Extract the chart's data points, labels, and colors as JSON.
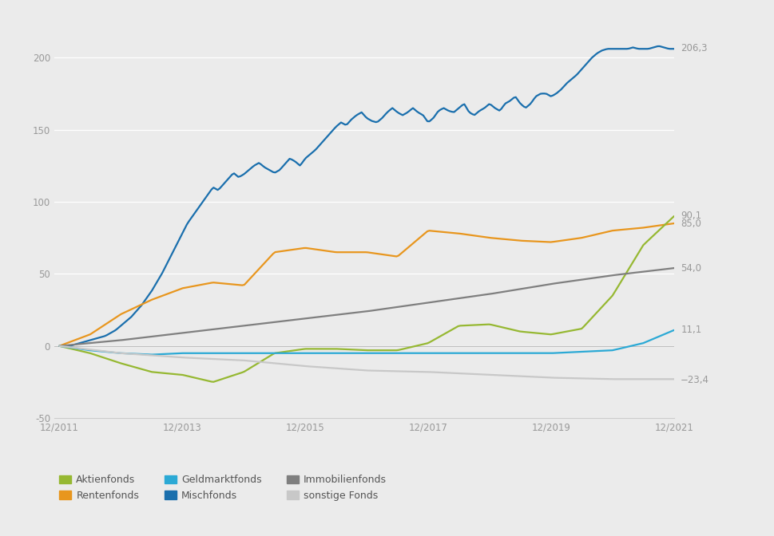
{
  "background_color": "#ebebeb",
  "x_labels": [
    "12/2011",
    "12/2013",
    "12/2015",
    "12/2017",
    "12/2019",
    "12/2021"
  ],
  "x_ticks_pos": [
    0,
    24,
    48,
    72,
    96,
    120
  ],
  "ylim": [
    -50,
    225
  ],
  "yticks": [
    -50,
    0,
    50,
    100,
    150,
    200
  ],
  "end_labels": {
    "Mischfonds": [
      206.3,
      "206,3"
    ],
    "Aktienfonds": [
      90.1,
      "90,1"
    ],
    "Rentenfonds": [
      85.0,
      "85,0"
    ],
    "Immobilienfonds": [
      54.0,
      "54,0"
    ],
    "Geldmarktfonds": [
      11.1,
      "11,1"
    ],
    "sonstige Fonds": [
      -23.4,
      "−23,4"
    ]
  },
  "series": {
    "Mischfonds": {
      "color": "#1a6fad",
      "linewidth": 1.6,
      "x": [
        0,
        1,
        2,
        3,
        4,
        5,
        6,
        7,
        8,
        9,
        10,
        11,
        12,
        13,
        14,
        15,
        16,
        17,
        18,
        19,
        20,
        21,
        22,
        23,
        24,
        25,
        26,
        27,
        28,
        29,
        30,
        31,
        32,
        33,
        34,
        35,
        36,
        37,
        38,
        39,
        40,
        41,
        42,
        43,
        44,
        45,
        46,
        47,
        48,
        49,
        50,
        51,
        52,
        53,
        54,
        55,
        56,
        57,
        58,
        59,
        60,
        61,
        62,
        63,
        64,
        65,
        66,
        67,
        68,
        69,
        70,
        71,
        72,
        73,
        74,
        75,
        76,
        77,
        78,
        79,
        80,
        81,
        82,
        83,
        84,
        85,
        86,
        87,
        88,
        89,
        90,
        91,
        92,
        93,
        94,
        95,
        96,
        97,
        98,
        99,
        100,
        101,
        102,
        103,
        104,
        105,
        106,
        107,
        108,
        109,
        110,
        111,
        112,
        113,
        114,
        115,
        116,
        117,
        118,
        119,
        120
      ],
      "y": [
        0,
        0,
        0,
        1,
        2,
        3,
        4,
        5,
        6,
        7,
        9,
        11,
        14,
        17,
        20,
        24,
        28,
        33,
        38,
        44,
        50,
        57,
        64,
        71,
        78,
        85,
        90,
        95,
        100,
        105,
        110,
        108,
        112,
        116,
        120,
        117,
        119,
        122,
        125,
        127,
        124,
        122,
        120,
        122,
        126,
        130,
        128,
        125,
        130,
        133,
        136,
        140,
        144,
        148,
        152,
        155,
        153,
        157,
        160,
        162,
        158,
        156,
        155,
        158,
        162,
        165,
        162,
        160,
        162,
        165,
        162,
        160,
        155,
        158,
        163,
        165,
        163,
        162,
        165,
        168,
        162,
        160,
        163,
        165,
        168,
        165,
        163,
        168,
        170,
        173,
        168,
        165,
        168,
        173,
        175,
        175,
        173,
        175,
        178,
        182,
        185,
        188,
        192,
        196,
        200,
        203,
        205,
        206,
        206,
        206,
        206,
        206,
        207,
        206,
        206,
        206,
        207,
        208,
        207,
        206,
        206
      ]
    },
    "Rentenfonds": {
      "color": "#e8961e",
      "linewidth": 1.6,
      "x": [
        0,
        6,
        12,
        18,
        24,
        30,
        36,
        42,
        48,
        54,
        60,
        66,
        72,
        78,
        84,
        90,
        96,
        102,
        108,
        114,
        120
      ],
      "y": [
        0,
        8,
        22,
        32,
        40,
        44,
        42,
        65,
        68,
        65,
        65,
        62,
        80,
        78,
        75,
        73,
        72,
        75,
        80,
        82,
        85
      ]
    },
    "Aktienfonds": {
      "color": "#96b832",
      "linewidth": 1.6,
      "x": [
        0,
        6,
        12,
        18,
        24,
        30,
        36,
        42,
        48,
        54,
        60,
        66,
        72,
        78,
        84,
        90,
        96,
        102,
        108,
        114,
        120
      ],
      "y": [
        0,
        -5,
        -12,
        -18,
        -20,
        -25,
        -18,
        -5,
        -2,
        -2,
        -3,
        -3,
        2,
        14,
        15,
        10,
        8,
        12,
        35,
        70,
        90
      ]
    },
    "Immobilienfonds": {
      "color": "#7f7f7f",
      "linewidth": 1.6,
      "x": [
        0,
        12,
        24,
        36,
        48,
        60,
        72,
        84,
        96,
        108,
        120
      ],
      "y": [
        0,
        4,
        9,
        14,
        19,
        24,
        30,
        36,
        43,
        49,
        54
      ]
    },
    "Geldmarktfonds": {
      "color": "#2ba9d5",
      "linewidth": 1.6,
      "x": [
        0,
        6,
        12,
        18,
        24,
        30,
        36,
        42,
        48,
        54,
        60,
        66,
        72,
        78,
        84,
        90,
        96,
        102,
        108,
        114,
        120
      ],
      "y": [
        0,
        -3,
        -5,
        -6,
        -5,
        -5,
        -5,
        -5,
        -5,
        -5,
        -5,
        -5,
        -5,
        -5,
        -5,
        -5,
        -5,
        -4,
        -3,
        2,
        11
      ]
    },
    "sonstige Fonds": {
      "color": "#c8c8c8",
      "linewidth": 1.6,
      "x": [
        0,
        12,
        24,
        36,
        48,
        60,
        72,
        84,
        96,
        108,
        120
      ],
      "y": [
        0,
        -5,
        -8,
        -10,
        -14,
        -17,
        -18,
        -20,
        -22,
        -23,
        -23
      ]
    }
  },
  "legend": [
    {
      "label": "Aktienfonds",
      "color": "#96b832",
      "row": 0,
      "col": 0
    },
    {
      "label": "Rentenfonds",
      "color": "#e8961e",
      "row": 0,
      "col": 1
    },
    {
      "label": "Geldmarktfonds",
      "color": "#2ba9d5",
      "row": 0,
      "col": 2
    },
    {
      "label": "Mischfonds",
      "color": "#1a6fad",
      "row": 1,
      "col": 0
    },
    {
      "label": "Immobilienfonds",
      "color": "#7f7f7f",
      "row": 1,
      "col": 1
    },
    {
      "label": "sonstige Fonds",
      "color": "#c8c8c8",
      "row": 1,
      "col": 2
    }
  ]
}
